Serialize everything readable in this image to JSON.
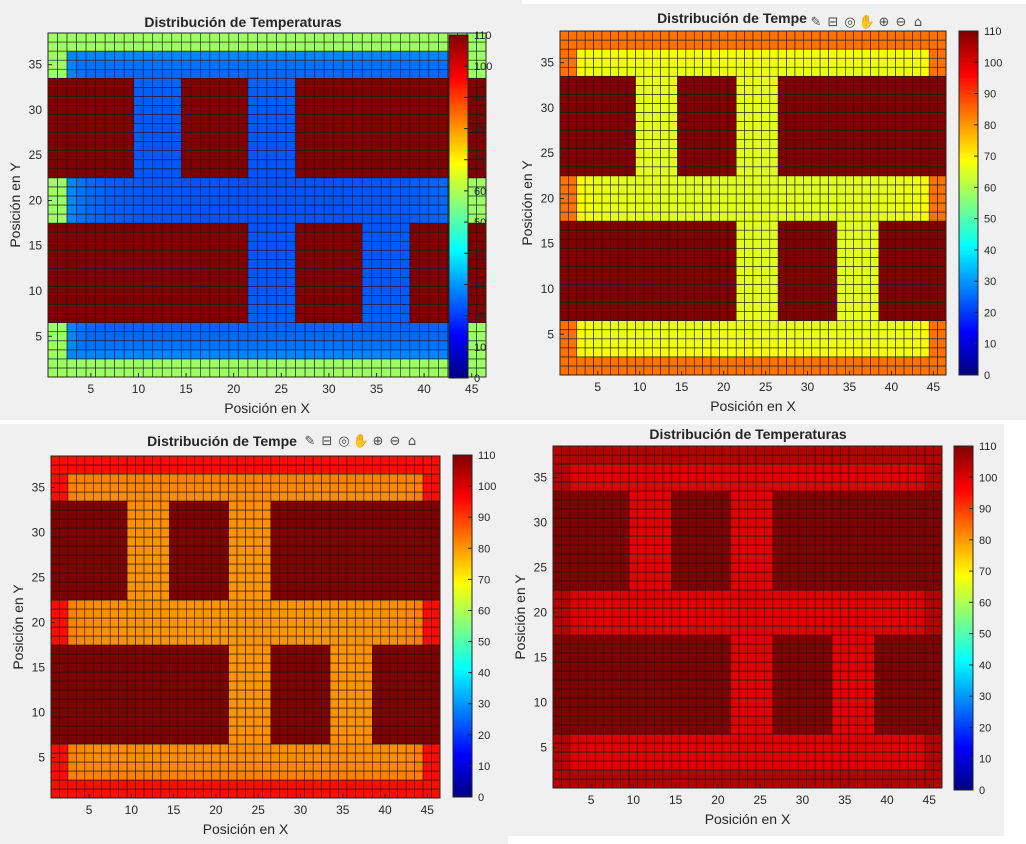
{
  "colormap": {
    "name": "jet",
    "colors": [
      "#000080",
      "#0000ff",
      "#0080ff",
      "#00ffff",
      "#80ff80",
      "#ffff00",
      "#ff8000",
      "#ff0000",
      "#800000"
    ]
  },
  "toolbar_icons": [
    "brush-icon",
    "datatip-icon",
    "rotate-icon",
    "pan-icon",
    "zoom-in-icon",
    "zoom-out-icon",
    "home-icon"
  ],
  "chart_data": [
    {
      "type": "heatmap",
      "title": "Distribución de Temperaturas",
      "xlabel": "Posición en X",
      "ylabel": "Posición en Y",
      "x_ticks": [
        5,
        10,
        15,
        20,
        25,
        30,
        35,
        40,
        45
      ],
      "y_ticks": [
        5,
        10,
        15,
        20,
        25,
        30,
        35
      ],
      "xlim": [
        0.5,
        46.5
      ],
      "ylim": [
        0.5,
        38.5
      ],
      "clim": [
        0,
        110
      ],
      "colorbar_ticks": [
        0,
        10,
        20,
        30,
        40,
        50,
        60,
        70,
        80,
        90,
        100,
        110
      ],
      "grid": "on",
      "toolbar_visible": false,
      "block_temperature": 110,
      "channel_min": 22,
      "boundary_max": 58
    },
    {
      "type": "heatmap",
      "title": "Distribución de Tempe",
      "xlabel": "Posición en X",
      "ylabel": "Posición en Y",
      "x_ticks": [
        5,
        10,
        15,
        20,
        25,
        30,
        35,
        40,
        45
      ],
      "y_ticks": [
        5,
        10,
        15,
        20,
        25,
        30,
        35
      ],
      "xlim": [
        0.5,
        46.5
      ],
      "ylim": [
        0.5,
        38.5
      ],
      "clim": [
        0,
        110
      ],
      "colorbar_ticks": [
        0,
        10,
        20,
        30,
        40,
        50,
        60,
        70,
        80,
        90,
        100,
        110
      ],
      "grid": "on",
      "toolbar_visible": true,
      "block_temperature": 110,
      "channel_min": 65,
      "boundary_max": 84
    },
    {
      "type": "heatmap",
      "title": "Distribución de Tempe",
      "xlabel": "Posición en X",
      "ylabel": "Posición en Y",
      "x_ticks": [
        5,
        10,
        15,
        20,
        25,
        30,
        35,
        40,
        45
      ],
      "y_ticks": [
        5,
        10,
        15,
        20,
        25,
        30,
        35
      ],
      "xlim": [
        0.5,
        46.5
      ],
      "ylim": [
        0.5,
        38.5
      ],
      "clim": [
        0,
        110
      ],
      "colorbar_ticks": [
        0,
        10,
        20,
        30,
        40,
        50,
        60,
        70,
        80,
        90,
        100,
        110
      ],
      "grid": "on",
      "toolbar_visible": true,
      "block_temperature": 110,
      "channel_min": 80,
      "boundary_max": 95
    },
    {
      "type": "heatmap",
      "title": "Distribución de Temperaturas",
      "xlabel": "Posición en X",
      "ylabel": "Posición en Y",
      "x_ticks": [
        5,
        10,
        15,
        20,
        25,
        30,
        35,
        40,
        45
      ],
      "y_ticks": [
        5,
        10,
        15,
        20,
        25,
        30,
        35
      ],
      "xlim": [
        0.5,
        46.5
      ],
      "ylim": [
        0.5,
        38.5
      ],
      "clim": [
        0,
        110
      ],
      "colorbar_ticks": [
        0,
        10,
        20,
        30,
        40,
        50,
        60,
        70,
        80,
        90,
        100,
        110
      ],
      "grid": "on",
      "toolbar_visible": false,
      "block_temperature": 110,
      "channel_min": 99,
      "boundary_max": 104
    }
  ]
}
